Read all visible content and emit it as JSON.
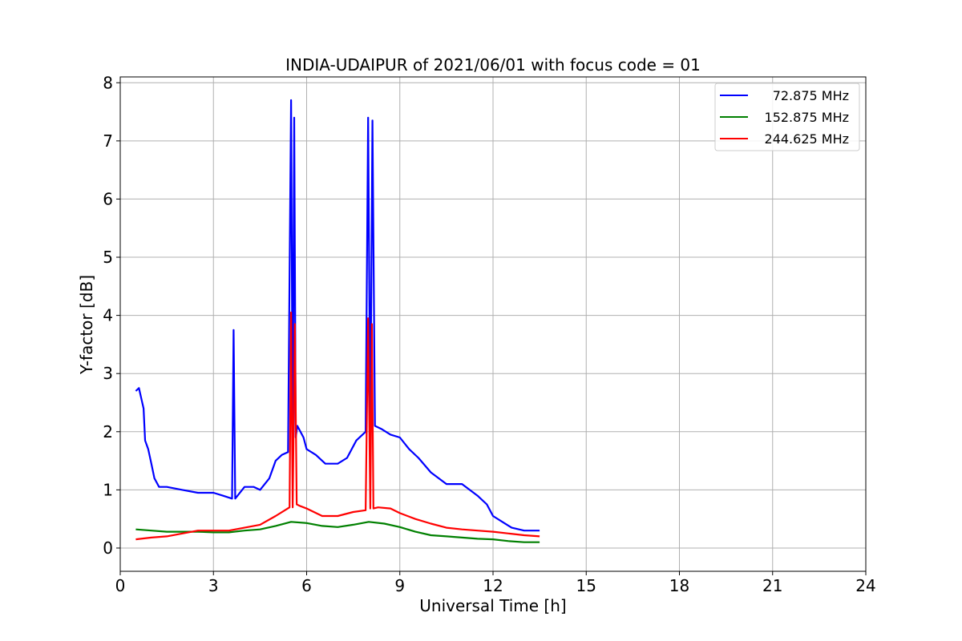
{
  "chart_data": {
    "type": "line",
    "title": "INDIA-UDAIPUR of 2021/06/01 with focus code = 01",
    "xlabel": "Universal Time [h]",
    "ylabel": "Y-factor [dB]",
    "xlim": [
      0,
      24
    ],
    "ylim": [
      -0.4,
      8.1
    ],
    "xticks": [
      0,
      3,
      6,
      9,
      12,
      15,
      18,
      21,
      24
    ],
    "yticks": [
      0,
      1,
      2,
      3,
      4,
      5,
      6,
      7,
      8
    ],
    "grid": true,
    "legend_position": "top-right",
    "series": [
      {
        "name": "72.875 MHz",
        "color": "#0000ff",
        "x": [
          0.5,
          0.6,
          0.75,
          0.8,
          0.9,
          1.0,
          1.1,
          1.25,
          1.5,
          2.0,
          2.5,
          3.0,
          3.3,
          3.6,
          3.65,
          3.7,
          4.0,
          4.3,
          4.5,
          4.8,
          5.0,
          5.2,
          5.4,
          5.5,
          5.55,
          5.6,
          5.65,
          5.7,
          5.9,
          6.0,
          6.3,
          6.6,
          7.0,
          7.3,
          7.6,
          7.9,
          7.98,
          8.05,
          8.12,
          8.2,
          8.4,
          8.7,
          9.0,
          9.3,
          9.6,
          10.0,
          10.5,
          11.0,
          11.5,
          11.8,
          12.0,
          12.3,
          12.6,
          13.0,
          13.3,
          13.5
        ],
        "y": [
          2.7,
          2.75,
          2.4,
          1.85,
          1.7,
          1.45,
          1.2,
          1.05,
          1.05,
          1.0,
          0.95,
          0.95,
          0.9,
          0.85,
          3.75,
          0.85,
          1.05,
          1.05,
          1.0,
          1.2,
          1.5,
          1.6,
          1.65,
          7.7,
          1.8,
          7.4,
          1.9,
          2.1,
          1.9,
          1.7,
          1.6,
          1.45,
          1.45,
          1.55,
          1.85,
          2.0,
          7.4,
          2.0,
          7.35,
          2.1,
          2.05,
          1.95,
          1.9,
          1.7,
          1.55,
          1.3,
          1.1,
          1.1,
          0.9,
          0.75,
          0.55,
          0.45,
          0.35,
          0.3,
          0.3,
          0.3
        ]
      },
      {
        "name": "152.875 MHz",
        "color": "#008000",
        "x": [
          0.5,
          1.0,
          1.5,
          2.0,
          2.5,
          3.0,
          3.5,
          4.0,
          4.5,
          5.0,
          5.5,
          6.0,
          6.5,
          7.0,
          7.5,
          8.0,
          8.5,
          9.0,
          9.5,
          10.0,
          10.5,
          11.0,
          11.5,
          12.0,
          12.5,
          13.0,
          13.5
        ],
        "y": [
          0.32,
          0.3,
          0.28,
          0.28,
          0.28,
          0.27,
          0.27,
          0.3,
          0.32,
          0.38,
          0.45,
          0.43,
          0.38,
          0.36,
          0.4,
          0.45,
          0.42,
          0.36,
          0.28,
          0.22,
          0.2,
          0.18,
          0.16,
          0.15,
          0.12,
          0.1,
          0.1
        ]
      },
      {
        "name": "244.625 MHz",
        "color": "#ff0000",
        "x": [
          0.5,
          1.0,
          1.5,
          2.0,
          2.5,
          3.0,
          3.5,
          4.0,
          4.5,
          5.0,
          5.3,
          5.45,
          5.5,
          5.55,
          5.62,
          5.68,
          5.8,
          6.0,
          6.5,
          7.0,
          7.5,
          7.9,
          7.98,
          8.05,
          8.1,
          8.15,
          8.3,
          8.7,
          9.0,
          9.5,
          10.0,
          10.5,
          11.0,
          11.5,
          12.0,
          12.5,
          13.0,
          13.5
        ],
        "y": [
          0.15,
          0.18,
          0.2,
          0.25,
          0.3,
          0.3,
          0.3,
          0.35,
          0.4,
          0.55,
          0.65,
          0.7,
          4.05,
          0.7,
          3.85,
          0.75,
          0.72,
          0.68,
          0.55,
          0.55,
          0.62,
          0.65,
          3.95,
          0.68,
          3.85,
          0.68,
          0.7,
          0.68,
          0.6,
          0.5,
          0.42,
          0.35,
          0.32,
          0.3,
          0.28,
          0.25,
          0.22,
          0.2
        ]
      }
    ]
  }
}
